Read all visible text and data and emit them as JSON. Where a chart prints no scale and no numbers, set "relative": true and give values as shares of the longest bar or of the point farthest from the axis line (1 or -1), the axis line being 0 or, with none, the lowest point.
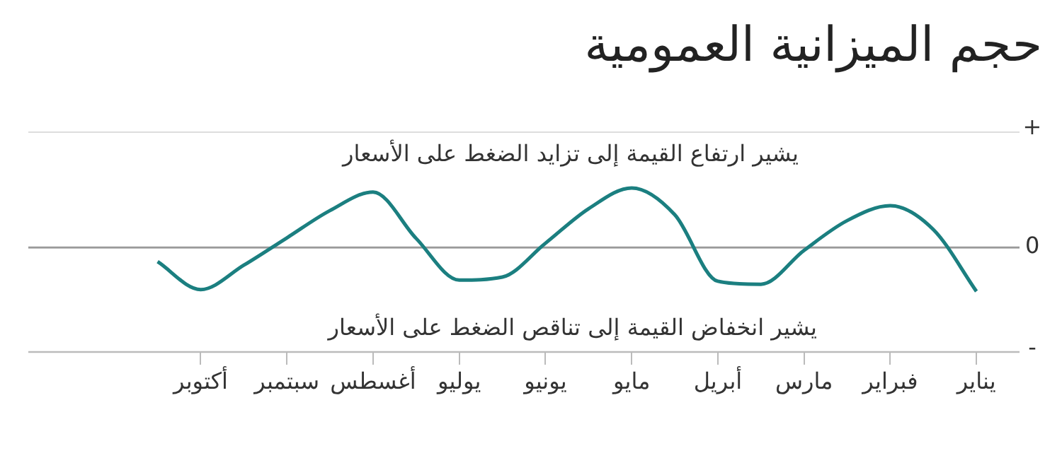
{
  "chart_data": {
    "type": "line",
    "title": "حجم الميزانية العمومية",
    "relative": true,
    "marker": "none",
    "categories": [
      null,
      null,
      null,
      null,
      "أكتوبر",
      null,
      "سبتمبر",
      null,
      "أغسطس",
      null,
      "يوليو",
      null,
      "يونيو",
      null,
      "مايو",
      null,
      "أبريل",
      null,
      "مارس",
      null,
      "فبراير",
      null,
      "يناير",
      null
    ],
    "series": [
      {
        "color": "#1b7f80",
        "values": [
          null,
          null,
          null,
          -0.24,
          -0.71,
          -0.3,
          0.16,
          0.62,
          0.93,
          0.15,
          -0.55,
          -0.5,
          0.07,
          0.65,
          1,
          0.55,
          -0.57,
          -0.62,
          -0.05,
          0.45,
          0.7,
          0.3,
          -0.74,
          null
        ]
      }
    ],
    "ref_lines": [
      {
        "axis": "y",
        "value": 0,
        "label": "0",
        "color": "#9a9a9a"
      }
    ],
    "annotations": [
      "يشير ارتفاع القيمة إلى تزايد الضغط على الأسعار",
      "يشير انخفاض القيمة إلى تناقص الضغط على الأسعار",
      "+",
      "-"
    ]
  }
}
